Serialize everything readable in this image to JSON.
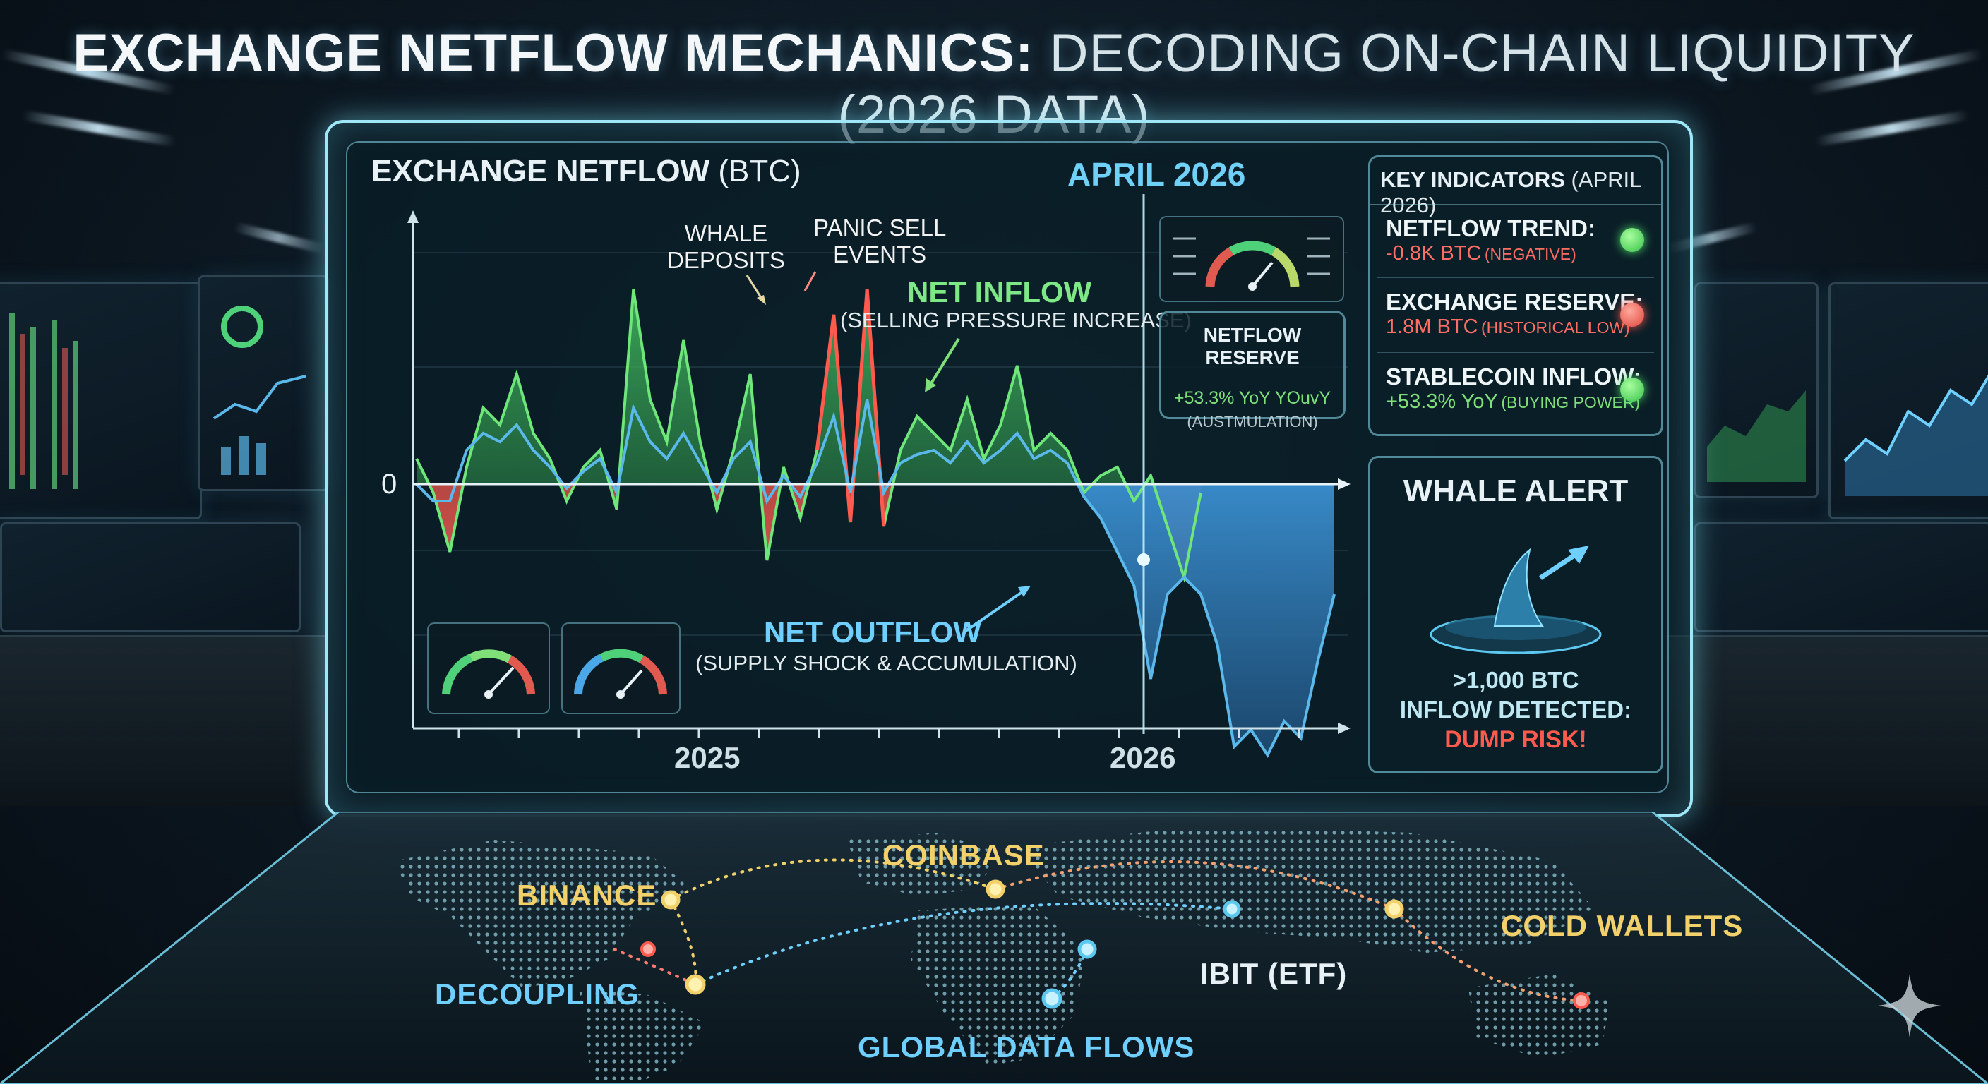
{
  "title": {
    "bold": "EXCHANGE NETFLOW MECHANICS:",
    "rest": "DECODING ON-CHAIN LIQUIDITY (2026 DATA)"
  },
  "chart": {
    "title_bold": "EXCHANGE NETFLOW",
    "title_unit": "(BTC)",
    "zero_label": "0",
    "marker_label": "APRIL 2026",
    "year_labels": [
      "2025",
      "2026"
    ],
    "annotations": {
      "whale_deposits": [
        "WHALE",
        "DEPOSITS"
      ],
      "panic_sell": [
        "PANIC SELL",
        "EVENTS"
      ],
      "net_inflow": "NET INFLOW",
      "net_inflow_sub": "(SELLING PRESSURE INCREASE)",
      "net_outflow": "NET OUTFLOW",
      "net_outflow_sub": "(SUPPLY SHOCK & ACCUMULATION)"
    }
  },
  "chart_data": {
    "type": "area",
    "title": "EXCHANGE NETFLOW (BTC)",
    "x_labels": [
      "2025",
      "2026"
    ],
    "marker": "APRIL 2026",
    "zero_line": 0,
    "series": [
      {
        "name": "",
        "color": "#6ee67a",
        "values": [
          0.6,
          -0.2,
          -1.6,
          0.4,
          1.8,
          1.4,
          2.6,
          1.2,
          0.6,
          -0.4,
          0.4,
          0.8,
          -0.6,
          4.6,
          2.0,
          1.0,
          3.4,
          1.0,
          -0.6,
          0.8,
          2.6,
          -1.8,
          0.4,
          -0.8,
          0.8,
          4.0,
          -0.9,
          4.6,
          -1.0,
          0.8,
          1.6,
          1.2,
          0.8,
          2.0,
          0.6,
          1.4,
          2.8,
          0.8,
          1.2,
          0.8,
          -0.2,
          0.2,
          0.4,
          -0.4,
          0.2,
          -1.0,
          -2.2,
          -0.2
        ]
      },
      {
        "name": "",
        "color": "#5ab8ea",
        "values": [
          0.0,
          -0.4,
          -0.4,
          0.8,
          1.2,
          1.0,
          1.4,
          0.8,
          0.4,
          -0.1,
          0.3,
          0.6,
          -0.2,
          1.8,
          1.0,
          0.6,
          1.2,
          0.5,
          -0.2,
          0.6,
          1.0,
          -0.4,
          0.2,
          -0.3,
          0.5,
          1.6,
          -0.2,
          2.0,
          -0.2,
          0.5,
          0.7,
          0.8,
          0.5,
          1.0,
          0.5,
          0.8,
          1.2,
          0.6,
          0.8,
          0.5,
          -0.3,
          -0.8,
          -1.6,
          -2.4,
          -4.6,
          -2.6,
          -2.2,
          -2.6,
          -3.8,
          -6.2,
          -5.8,
          -6.4,
          -5.6,
          -6.0,
          -4.2,
          -2.6
        ]
      }
    ],
    "regions": [
      {
        "label": "NET INFLOW (SELLING PRESSURE INCREASE)",
        "color": "#6ee67a"
      },
      {
        "label": "NET OUTFLOW (SUPPLY SHOCK & ACCUMULATION)",
        "color": "#2f7fb8"
      }
    ]
  },
  "netflow_reserve": {
    "title": "NETFLOW RESERVE",
    "value": "+53.3% YoY YOuvY",
    "sub": "(AUSTMULATION)"
  },
  "key_indicators": {
    "title_bold": "KEY INDICATORS",
    "title_rest": "(APRIL 2026)",
    "items": [
      {
        "label": "NETFLOW TREND:",
        "value": "-0.8K BTC",
        "note": "(NEGATIVE)",
        "status": "green"
      },
      {
        "label": "EXCHANGE RESERVE:",
        "value": "1.8M BTC",
        "note": "(HISTORICAL LOW)",
        "status": "red"
      },
      {
        "label": "STABLECOIN INFLOW:",
        "value": "+53.3% YoY",
        "note": "(BUYING POWER)",
        "status": "green"
      }
    ]
  },
  "whale_alert": {
    "title": "WHALE ALERT",
    "line1": ">1,000 BTC",
    "line2": "INFLOW DETECTED:",
    "line3": "DUMP RISK!"
  },
  "map": {
    "labels": {
      "binance": "BINANCE",
      "coinbase": "COINBASE",
      "cold_wallets": "COLD WALLETS",
      "decoupling": "DECOUPLING",
      "ibit": "IBIT (ETF)",
      "global": "GLOBAL DATA FLOWS"
    }
  },
  "colors": {
    "inflow": "#6ee67a",
    "outflow": "#2f7fb8",
    "panic": "#ff5a4e",
    "accent": "#5cc8f0",
    "gold": "#f2d06a"
  }
}
